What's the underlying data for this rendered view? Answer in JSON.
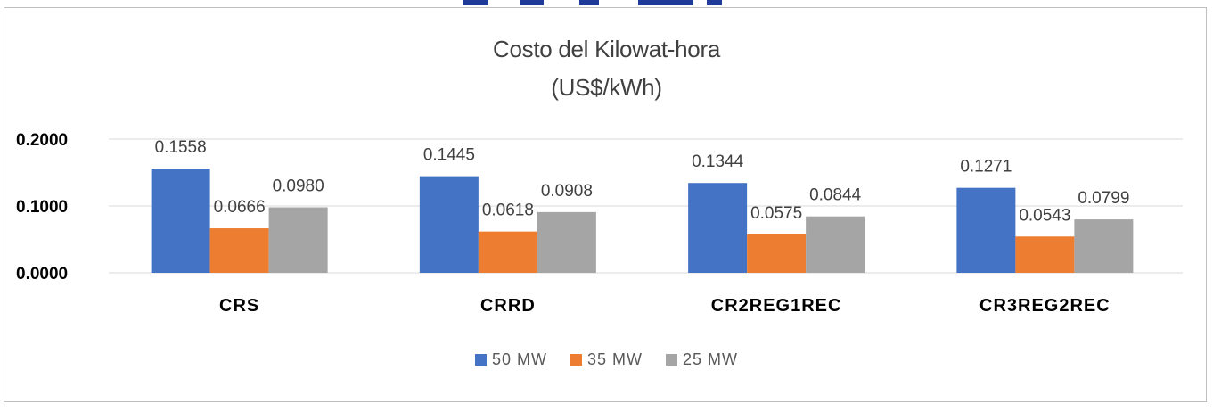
{
  "chart_data": {
    "type": "bar",
    "title": "Costo del Kilowat-hora",
    "subtitle": "(US$/kWh)",
    "categories": [
      "CRS",
      "CRRD",
      "CR2REG1REC",
      "CR3REG2REC"
    ],
    "series": [
      {
        "name": "50 MW",
        "values": [
          0.1558,
          0.1445,
          0.1344,
          0.1271
        ],
        "labels": [
          "0.1558",
          "0.1445",
          "0.1344",
          "0.1271"
        ],
        "color": "#4472c4"
      },
      {
        "name": "35 MW",
        "values": [
          0.0666,
          0.0618,
          0.0575,
          0.0543
        ],
        "labels": [
          "0.0666",
          "0.0618",
          "0.0575",
          "0.0543"
        ],
        "color": "#ed7d31"
      },
      {
        "name": "25 MW",
        "values": [
          0.098,
          0.0908,
          0.0844,
          0.0799
        ],
        "labels": [
          "0.0980",
          "0.0908",
          "0.0844",
          "0.0799"
        ],
        "color": "#a5a5a5"
      }
    ],
    "yticks": [
      "0.0000",
      "0.1000",
      "0.2000"
    ],
    "ylim": [
      0,
      0.2
    ],
    "grid": true,
    "legend_position": "bottom"
  }
}
